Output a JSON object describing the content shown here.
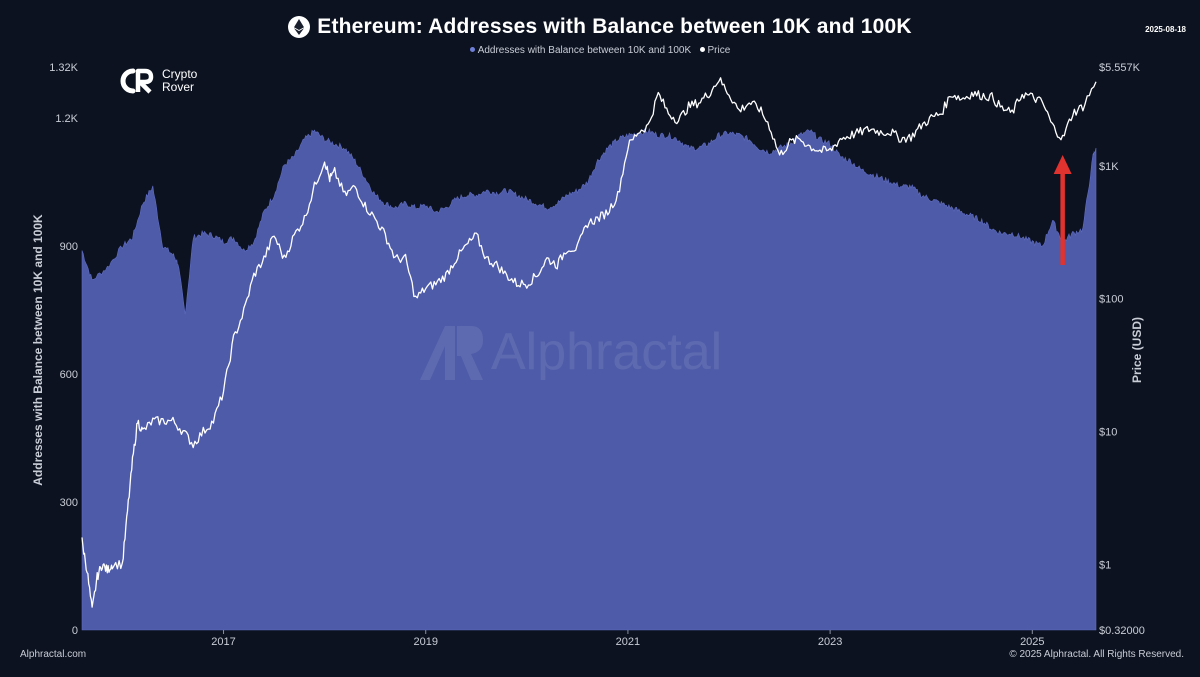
{
  "header": {
    "title": "Ethereum: Addresses with Balance between 10K and 100K",
    "date": "2025-08-18"
  },
  "legend": {
    "series1": "Addresses with Balance between 10K and 100K",
    "series2": "Price"
  },
  "logo": {
    "line1": "Crypto",
    "line2": "Rover"
  },
  "watermark": "Alphractal",
  "footer": {
    "left": "Alphractal.com",
    "right": "© 2025 Alphractal. All Rights Reserved."
  },
  "colors": {
    "area": "#4e5ba8",
    "price": "#ffffff",
    "arrow": "#e0322e",
    "background": "#0c1220"
  },
  "chart_data": {
    "type": "area",
    "title": "Ethereum: Addresses with Balance between 10K and 100K",
    "ylabel_left": "Addresses with Balance between 10K and 100K",
    "ylabel_right": "Price (USD)",
    "x_ticks": [
      "2017",
      "2019",
      "2021",
      "2023",
      "2025"
    ],
    "y_left_ticks": [
      "0",
      "300",
      "600",
      "900",
      "1.2K",
      "1.32K"
    ],
    "y_left_tick_values": [
      0,
      300,
      600,
      900,
      1200,
      1320
    ],
    "ylim_left": [
      0,
      1320
    ],
    "y_right_ticks": [
      "$0.32000",
      "$1",
      "$10",
      "$100",
      "$1K",
      "$5.557K"
    ],
    "y_right_tick_values": [
      0.32,
      1,
      10,
      100,
      1000,
      5557
    ],
    "ylim_right": [
      0.32,
      5557
    ],
    "y_right_scale": "log",
    "grid": false,
    "legend_position": "top-center",
    "series": [
      {
        "name": "Addresses with Balance between 10K and 100K",
        "x": [
          2015.6,
          2015.7,
          2015.85,
          2016.0,
          2016.1,
          2016.2,
          2016.3,
          2016.4,
          2016.5,
          2016.55,
          2016.62,
          2016.7,
          2016.8,
          2016.9,
          2017.0,
          2017.1,
          2017.2,
          2017.3,
          2017.4,
          2017.5,
          2017.6,
          2017.7,
          2017.8,
          2017.9,
          2018.0,
          2018.1,
          2018.2,
          2018.3,
          2018.4,
          2018.5,
          2018.6,
          2018.7,
          2018.8,
          2018.9,
          2019.0,
          2019.1,
          2019.2,
          2019.3,
          2019.4,
          2019.5,
          2019.6,
          2019.7,
          2019.8,
          2019.9,
          2020.0,
          2020.1,
          2020.2,
          2020.3,
          2020.4,
          2020.5,
          2020.6,
          2020.7,
          2020.8,
          2020.9,
          2021.0,
          2021.1,
          2021.2,
          2021.3,
          2021.4,
          2021.5,
          2021.6,
          2021.7,
          2021.8,
          2021.9,
          2022.0,
          2022.1,
          2022.2,
          2022.3,
          2022.4,
          2022.5,
          2022.6,
          2022.7,
          2022.8,
          2022.9,
          2023.0,
          2023.1,
          2023.2,
          2023.3,
          2023.4,
          2023.5,
          2023.6,
          2023.7,
          2023.8,
          2023.9,
          2024.0,
          2024.1,
          2024.2,
          2024.3,
          2024.4,
          2024.5,
          2024.6,
          2024.7,
          2024.8,
          2024.9,
          2025.0,
          2025.1,
          2025.2,
          2025.3,
          2025.4,
          2025.5,
          2025.6,
          2025.63
        ],
        "values": [
          890,
          820,
          850,
          900,
          920,
          1000,
          1040,
          900,
          880,
          860,
          740,
          920,
          930,
          925,
          910,
          920,
          890,
          910,
          980,
          1020,
          1090,
          1110,
          1150,
          1170,
          1150,
          1140,
          1130,
          1100,
          1060,
          1020,
          1000,
          990,
          1000,
          990,
          995,
          980,
          990,
          1010,
          1020,
          1020,
          1030,
          1025,
          1030,
          1020,
          1010,
          1000,
          990,
          1000,
          1020,
          1030,
          1050,
          1100,
          1130,
          1150,
          1160,
          1165,
          1170,
          1160,
          1160,
          1150,
          1130,
          1130,
          1140,
          1160,
          1165,
          1160,
          1150,
          1130,
          1120,
          1130,
          1140,
          1160,
          1170,
          1150,
          1140,
          1110,
          1100,
          1080,
          1070,
          1060,
          1050,
          1040,
          1040,
          1020,
          1010,
          1000,
          990,
          980,
          970,
          960,
          940,
          930,
          930,
          920,
          910,
          900,
          960,
          910,
          930,
          940,
          1110,
          1130
        ]
      },
      {
        "name": "Price",
        "x": [
          2015.6,
          2015.65,
          2015.7,
          2015.75,
          2015.8,
          2015.85,
          2015.9,
          2016.0,
          2016.05,
          2016.1,
          2016.15,
          2016.2,
          2016.3,
          2016.4,
          2016.5,
          2016.6,
          2016.7,
          2016.8,
          2016.9,
          2017.0,
          2017.1,
          2017.2,
          2017.3,
          2017.4,
          2017.5,
          2017.6,
          2017.7,
          2017.8,
          2017.9,
          2018.0,
          2018.05,
          2018.1,
          2018.2,
          2018.3,
          2018.4,
          2018.5,
          2018.6,
          2018.7,
          2018.8,
          2018.9,
          2019.0,
          2019.1,
          2019.2,
          2019.3,
          2019.4,
          2019.5,
          2019.6,
          2019.7,
          2019.8,
          2019.9,
          2020.0,
          2020.1,
          2020.2,
          2020.3,
          2020.4,
          2020.5,
          2020.6,
          2020.7,
          2020.8,
          2020.9,
          2021.0,
          2021.1,
          2021.2,
          2021.3,
          2021.4,
          2021.5,
          2021.6,
          2021.7,
          2021.8,
          2021.9,
          2022.0,
          2022.1,
          2022.2,
          2022.3,
          2022.4,
          2022.5,
          2022.6,
          2022.7,
          2022.8,
          2022.9,
          2023.0,
          2023.1,
          2023.2,
          2023.3,
          2023.4,
          2023.5,
          2023.6,
          2023.7,
          2023.8,
          2023.9,
          2024.0,
          2024.1,
          2024.2,
          2024.3,
          2024.4,
          2024.5,
          2024.6,
          2024.7,
          2024.8,
          2024.9,
          2025.0,
          2025.1,
          2025.2,
          2025.3,
          2025.4,
          2025.5,
          2025.63
        ],
        "values": [
          1.5,
          0.9,
          0.45,
          0.8,
          1.0,
          0.9,
          1.0,
          1.0,
          2.5,
          6,
          12,
          10,
          12,
          12,
          12,
          10,
          8,
          10,
          12,
          20,
          50,
          80,
          150,
          200,
          300,
          200,
          300,
          400,
          700,
          1100,
          800,
          900,
          600,
          700,
          500,
          400,
          300,
          200,
          200,
          100,
          120,
          130,
          150,
          200,
          250,
          300,
          200,
          180,
          150,
          130,
          130,
          150,
          200,
          180,
          240,
          240,
          370,
          400,
          450,
          600,
          1400,
          1800,
          2000,
          3500,
          2500,
          2200,
          2800,
          3000,
          3500,
          4500,
          3500,
          2600,
          3000,
          2700,
          2000,
          1200,
          1500,
          1600,
          1400,
          1300,
          1300,
          1600,
          1700,
          1800,
          1900,
          1800,
          1800,
          1600,
          1650,
          2000,
          2300,
          2500,
          3500,
          3200,
          3500,
          3400,
          3300,
          2700,
          2500,
          3500,
          3300,
          3000,
          2000,
          1600,
          2500,
          2800,
          4300
        ]
      }
    ],
    "annotations": [
      {
        "type": "arrow",
        "direction": "up",
        "x": 2025.3,
        "color": "#e0322e"
      }
    ]
  }
}
